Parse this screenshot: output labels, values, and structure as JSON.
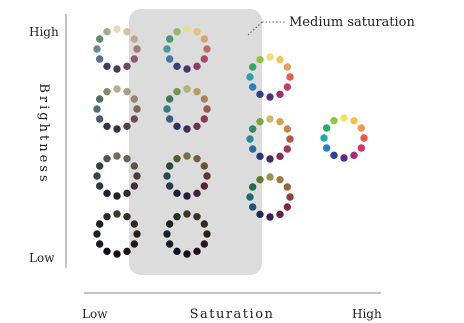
{
  "diagram": {
    "annotation": "Medium saturation",
    "y_axis": {
      "title": "Brightness",
      "high": "High",
      "low": "Low"
    },
    "x_axis": {
      "title": "Saturation",
      "low": "Low",
      "high": "High"
    }
  },
  "wheel_hues": [
    "#f3e06b",
    "#f5c24a",
    "#f19b4a",
    "#e85a4f",
    "#d6336c",
    "#a6297a",
    "#5b2a86",
    "#2c3e9a",
    "#2a7fc4",
    "#22a6b3",
    "#2aaa6a",
    "#8cc63f"
  ],
  "wheels": [
    {
      "saturation": 0.3,
      "brightness": 1.0
    },
    {
      "saturation": 0.3,
      "brightness": 0.8
    },
    {
      "saturation": 0.3,
      "brightness": 0.5
    },
    {
      "saturation": 0.3,
      "brightness": 0.25
    },
    {
      "saturation": 0.6,
      "brightness": 1.0
    },
    {
      "saturation": 0.6,
      "brightness": 0.8
    },
    {
      "saturation": 0.6,
      "brightness": 0.5
    },
    {
      "saturation": 0.6,
      "brightness": 0.25
    },
    {
      "saturation": 0.85,
      "brightness": 1.0
    },
    {
      "saturation": 0.85,
      "brightness": 0.85
    },
    {
      "saturation": 0.85,
      "brightness": 0.65
    },
    {
      "saturation": 1.0,
      "brightness": 1.0
    }
  ]
}
